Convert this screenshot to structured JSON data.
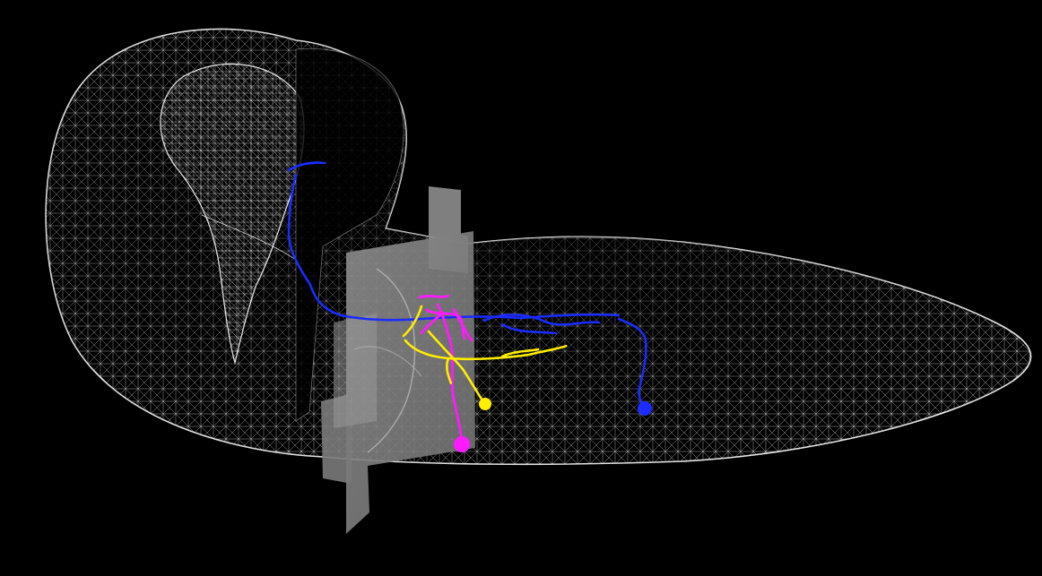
{
  "scene": {
    "background": "#000000",
    "mesh_color": "#ffffff",
    "slice_color": "#7a7a7a",
    "neurons": [
      {
        "color": "#1a2cff"
      },
      {
        "color": "#ff1aff"
      },
      {
        "color": "#ffee00"
      }
    ]
  }
}
